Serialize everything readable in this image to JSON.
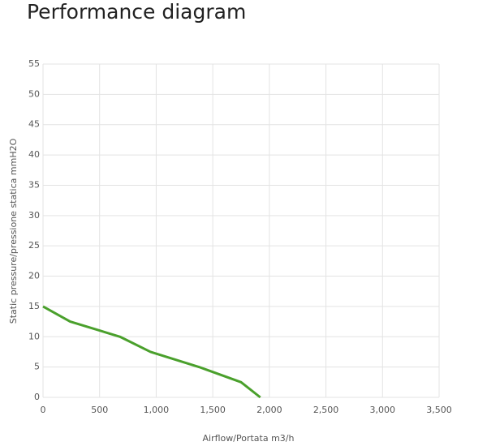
{
  "chart_data": {
    "type": "line",
    "title": "Performance diagram",
    "x_label": "Airflow/Portata m3/h",
    "y_label": "Static pressure/pressione statica mmH2O",
    "x": [
      0,
      240,
      680,
      950,
      1380,
      1750,
      1920
    ],
    "series": [
      {
        "color": "#4aa02c",
        "values": [
          15,
          12.5,
          10,
          7.5,
          5,
          2.5,
          0
        ]
      }
    ],
    "xlim": [
      0,
      3500
    ],
    "xticks": [
      0,
      500,
      {
        "value": 1000,
        "label": "1,000"
      },
      {
        "value": 1500,
        "label": "1,500"
      },
      {
        "value": 2000,
        "label": "2,000"
      },
      {
        "value": 2500,
        "label": "2,500"
      },
      {
        "value": 3000,
        "label": "3,000"
      },
      {
        "value": 3500,
        "label": "3,500"
      }
    ],
    "ylim": [
      0,
      55
    ],
    "yticks": [
      0,
      5,
      10,
      15,
      20,
      25,
      30,
      35,
      40,
      45,
      50,
      55
    ],
    "grid": true
  }
}
